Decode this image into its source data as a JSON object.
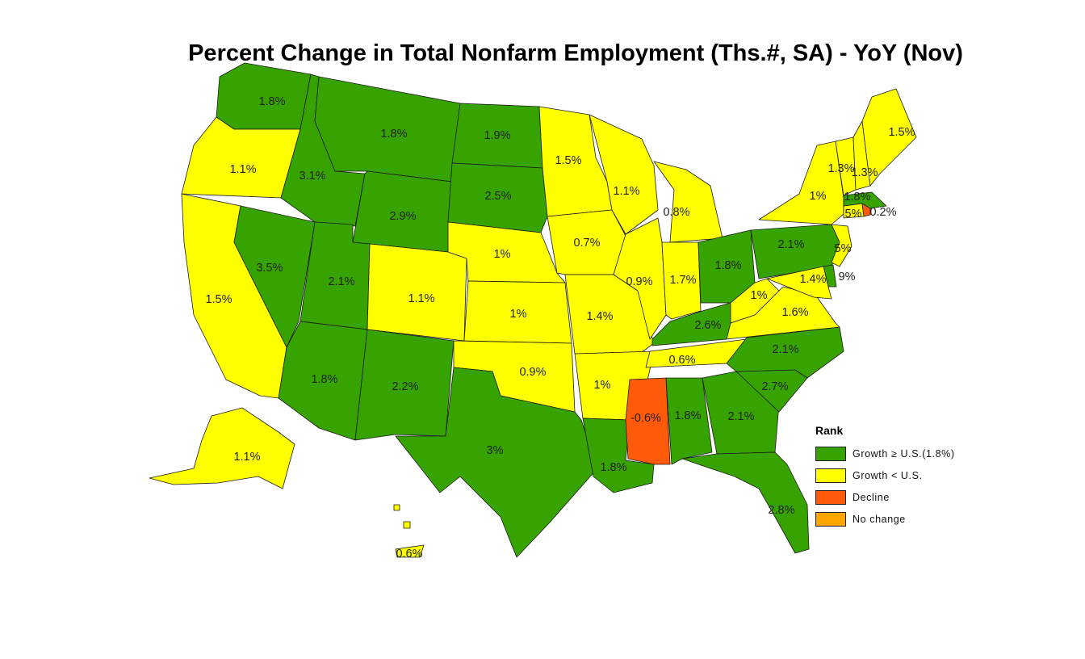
{
  "title": "Percent Change in Total Nonfarm Employment (Ths.#, SA) - YoY (Nov)",
  "colors": {
    "above_us": "#36a300",
    "below_us": "#ffff00",
    "decline": "#ff5a0a",
    "no_change": "#ffa500"
  },
  "legend": {
    "title": "Rank",
    "items": [
      {
        "key": "above_us",
        "label": "Growth ≥ U.S.(1.8%)"
      },
      {
        "key": "below_us",
        "label": "Growth < U.S."
      },
      {
        "key": "decline",
        "label": "Decline"
      },
      {
        "key": "no_change",
        "label": "No change"
      }
    ]
  },
  "chart_data": {
    "type": "choropleth",
    "us_growth_pct": 1.8,
    "states": [
      {
        "id": "WA",
        "label": "1.8%",
        "value": 1.8,
        "category": "above_us"
      },
      {
        "id": "OR",
        "label": "1.1%",
        "value": 1.1,
        "category": "below_us"
      },
      {
        "id": "CA",
        "label": "1.5%",
        "value": 1.5,
        "category": "below_us"
      },
      {
        "id": "ID",
        "label": "3.1%",
        "value": 3.1,
        "category": "above_us"
      },
      {
        "id": "NV",
        "label": "3.5%",
        "value": 3.5,
        "category": "above_us"
      },
      {
        "id": "MT",
        "label": "1.8%",
        "value": 1.8,
        "category": "above_us"
      },
      {
        "id": "WY",
        "label": "2.9%",
        "value": 2.9,
        "category": "above_us"
      },
      {
        "id": "UT",
        "label": "2.1%",
        "value": 2.1,
        "category": "above_us"
      },
      {
        "id": "AZ",
        "label": "1.8%",
        "value": 1.8,
        "category": "above_us"
      },
      {
        "id": "CO",
        "label": "1.1%",
        "value": 1.1,
        "category": "below_us"
      },
      {
        "id": "NM",
        "label": "2.2%",
        "value": 2.2,
        "category": "above_us"
      },
      {
        "id": "ND",
        "label": "1.9%",
        "value": 1.9,
        "category": "above_us"
      },
      {
        "id": "SD",
        "label": "2.5%",
        "value": 2.5,
        "category": "above_us"
      },
      {
        "id": "NE",
        "label": "1%",
        "value": 1.0,
        "category": "below_us"
      },
      {
        "id": "KS",
        "label": "1%",
        "value": 1.0,
        "category": "below_us"
      },
      {
        "id": "OK",
        "label": "0.9%",
        "value": 0.9,
        "category": "below_us"
      },
      {
        "id": "TX",
        "label": "3%",
        "value": 3.0,
        "category": "above_us"
      },
      {
        "id": "MN",
        "label": "1.5%",
        "value": 1.5,
        "category": "below_us"
      },
      {
        "id": "IA",
        "label": "0.7%",
        "value": 0.7,
        "category": "below_us"
      },
      {
        "id": "MO",
        "label": "1.4%",
        "value": 1.4,
        "category": "below_us"
      },
      {
        "id": "AR",
        "label": "1%",
        "value": 1.0,
        "category": "below_us"
      },
      {
        "id": "LA",
        "label": "1.8%",
        "value": 1.8,
        "category": "above_us"
      },
      {
        "id": "WI",
        "label": "1.1%",
        "value": 1.1,
        "category": "below_us"
      },
      {
        "id": "IL",
        "label": "0.9%",
        "value": 0.9,
        "category": "below_us"
      },
      {
        "id": "MI",
        "label": "0.8%",
        "value": 0.8,
        "category": "below_us"
      },
      {
        "id": "IN",
        "label": "1.7%",
        "value": 1.7,
        "category": "below_us"
      },
      {
        "id": "OH",
        "label": "1.8%",
        "value": 1.8,
        "category": "above_us"
      },
      {
        "id": "KY",
        "label": "2.6%",
        "value": 2.6,
        "category": "above_us"
      },
      {
        "id": "TN",
        "label": "0.6%",
        "value": 0.6,
        "category": "below_us"
      },
      {
        "id": "MS",
        "label": "-0.6%",
        "value": -0.6,
        "category": "decline"
      },
      {
        "id": "AL",
        "label": "1.8%",
        "value": 1.8,
        "category": "above_us"
      },
      {
        "id": "GA",
        "label": "2.1%",
        "value": 2.1,
        "category": "above_us"
      },
      {
        "id": "FL",
        "label": "2.8%",
        "value": 2.8,
        "category": "above_us"
      },
      {
        "id": "SC",
        "label": "2.7%",
        "value": 2.7,
        "category": "above_us"
      },
      {
        "id": "NC",
        "label": "2.1%",
        "value": 2.1,
        "category": "above_us"
      },
      {
        "id": "VA",
        "label": "1.6%",
        "value": 1.6,
        "category": "below_us"
      },
      {
        "id": "WV",
        "label": "1%",
        "value": 1.0,
        "category": "below_us"
      },
      {
        "id": "PA",
        "label": "2.1%",
        "value": 2.1,
        "category": "above_us"
      },
      {
        "id": "NY",
        "label": "1%",
        "value": 1.0,
        "category": "below_us"
      },
      {
        "id": "NJ",
        "label": "5%",
        "category": "below_us"
      },
      {
        "id": "DE",
        "label": "9%",
        "category": "above_us"
      },
      {
        "id": "MD",
        "label": "1.4%",
        "value": 1.4,
        "category": "below_us"
      },
      {
        "id": "CT",
        "label": "5%",
        "category": "below_us"
      },
      {
        "id": "RI",
        "label": "0.2%",
        "category": "decline"
      },
      {
        "id": "MA",
        "label": "1.8%",
        "value": 1.8,
        "category": "above_us"
      },
      {
        "id": "VT",
        "label": "1.3%",
        "value": 1.3,
        "category": "below_us"
      },
      {
        "id": "NH",
        "label": "1.3%",
        "value": 1.3,
        "category": "below_us"
      },
      {
        "id": "ME",
        "label": "1.5%",
        "value": 1.5,
        "category": "below_us"
      },
      {
        "id": "AK",
        "label": "1.1%",
        "value": 1.1,
        "category": "below_us"
      },
      {
        "id": "HI",
        "label": "0.6%",
        "value": 0.6,
        "category": "below_us"
      }
    ]
  }
}
